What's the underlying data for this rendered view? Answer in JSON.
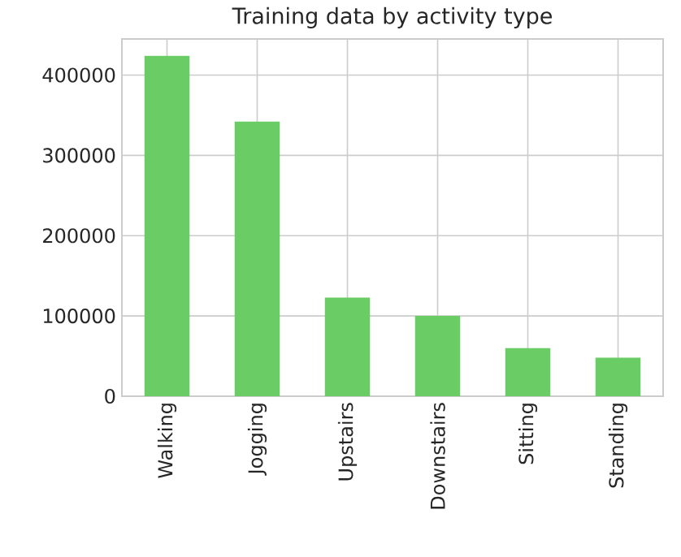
{
  "chart_data": {
    "type": "bar",
    "title": "Training data by activity type",
    "categories": [
      "Walking",
      "Jogging",
      "Upstairs",
      "Downstairs",
      "Sitting",
      "Standing"
    ],
    "values": [
      424000,
      342000,
      123000,
      100000,
      60000,
      48000
    ],
    "color": "#6acc64",
    "ylim": [
      0,
      445000
    ],
    "yticks": [
      0,
      100000,
      200000,
      300000,
      400000
    ],
    "grid": true
  }
}
